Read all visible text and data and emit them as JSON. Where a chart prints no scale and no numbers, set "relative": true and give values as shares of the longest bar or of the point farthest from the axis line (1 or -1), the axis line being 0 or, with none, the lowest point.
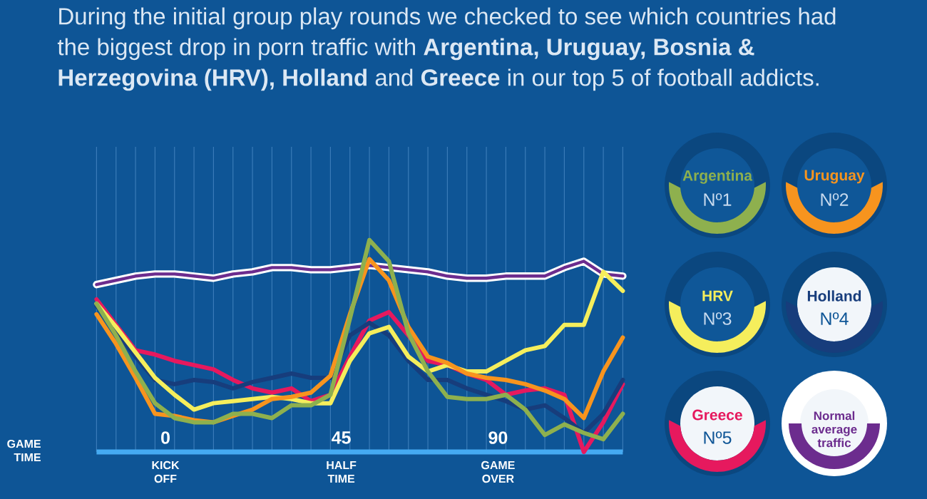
{
  "chart_data": {
    "type": "line",
    "title": "During the initial group play rounds we checked to see which countries had the biggest drop in porn traffic with **Argentina, Uruguay, Bosnia & Herzegovina (HRV), Holland** and **Greece** in our top 5 of football addicts.",
    "categories": [
      null,
      null,
      null,
      null,
      null,
      null,
      null,
      null,
      null,
      null,
      null,
      null,
      null,
      null,
      null,
      null,
      null,
      null,
      null,
      null,
      null,
      null,
      null,
      null,
      null,
      null,
      null,
      null
    ],
    "relative": true,
    "grid": true,
    "legend": "right",
    "annotations": [
      "Nº1",
      "Nº2",
      "Nº3",
      "Nº4",
      "Nº5",
      "GAME TIME",
      "0",
      "45",
      "90",
      "KICK OFF",
      "HALF TIME",
      "GAME OVER"
    ],
    "series": [
      {
        "name": "Argentina",
        "color": "#8eb04e",
        "values": [
          0.7,
          0.55,
          0.38,
          0.23,
          0.16,
          0.14,
          0.14,
          0.18,
          0.18,
          0.16,
          0.22,
          0.22,
          0.27,
          0.63,
          1.0,
          0.9,
          0.56,
          0.38,
          0.26,
          0.25,
          0.25,
          0.27,
          0.2,
          0.08,
          0.13,
          0.09,
          0.06,
          0.18
        ]
      },
      {
        "name": "Uruguay",
        "color": "#f7941e",
        "values": [
          0.65,
          0.51,
          0.35,
          0.18,
          0.17,
          0.15,
          0.14,
          0.17,
          0.2,
          0.25,
          0.26,
          0.28,
          0.36,
          0.65,
          0.91,
          0.81,
          0.59,
          0.45,
          0.42,
          0.37,
          0.35,
          0.34,
          0.32,
          0.29,
          0.25,
          0.16,
          0.38,
          0.54
        ]
      },
      {
        "name": "HRV",
        "color": "#f5ee5c",
        "values": [
          0.7,
          0.59,
          0.47,
          0.35,
          0.27,
          0.2,
          0.23,
          0.24,
          0.25,
          0.26,
          0.25,
          0.23,
          0.23,
          0.43,
          0.56,
          0.59,
          0.45,
          0.38,
          0.41,
          0.38,
          0.38,
          0.43,
          0.48,
          0.5,
          0.6,
          0.6,
          0.85,
          0.76
        ]
      },
      {
        "name": "Holland",
        "color": "#173d7c",
        "values": [
          0.69,
          0.57,
          0.45,
          0.34,
          0.32,
          0.34,
          0.33,
          0.3,
          0.33,
          0.35,
          0.37,
          0.35,
          0.35,
          0.55,
          0.61,
          0.55,
          0.43,
          0.34,
          0.34,
          0.3,
          0.27,
          0.24,
          0.2,
          0.22,
          0.16,
          0.09,
          0.18,
          0.34
        ]
      },
      {
        "name": "Greece",
        "color": "#e6195e",
        "values": [
          0.72,
          0.6,
          0.48,
          0.46,
          0.43,
          0.41,
          0.39,
          0.34,
          0.3,
          0.28,
          0.3,
          0.24,
          0.27,
          0.45,
          0.62,
          0.66,
          0.55,
          0.43,
          0.41,
          0.37,
          0.34,
          0.27,
          0.29,
          0.3,
          0.27,
          0.0,
          0.14,
          0.32
        ]
      },
      {
        "name": "Normal average traffic",
        "color": "#6c2c8e",
        "values": [
          0.79,
          0.81,
          0.83,
          0.84,
          0.84,
          0.83,
          0.82,
          0.84,
          0.85,
          0.87,
          0.87,
          0.86,
          0.86,
          0.87,
          0.88,
          0.87,
          0.86,
          0.85,
          0.83,
          0.82,
          0.82,
          0.83,
          0.83,
          0.83,
          0.87,
          0.9,
          0.84,
          0.83
        ]
      }
    ]
  }
}
